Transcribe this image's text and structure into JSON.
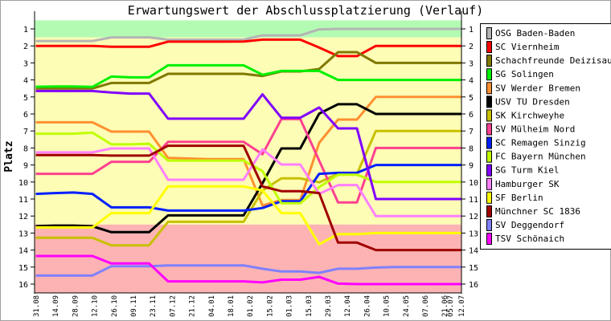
{
  "chart_data": {
    "type": "line",
    "title": "Erwartungswert der Abschlussplatzierung (Verlauf)",
    "ylabel": "Platz",
    "xlabel": "",
    "ylim": [
      16.5,
      0.5
    ],
    "y_ticks": [
      1,
      2,
      3,
      4,
      5,
      6,
      7,
      8,
      9,
      10,
      11,
      12,
      13,
      14,
      15,
      16
    ],
    "x_tick_labels": [
      "31.08",
      "14.09",
      "28.09",
      "12.10",
      "26.10",
      "09.11",
      "23.11",
      "07.12",
      "21.12",
      "04.01",
      "18.01",
      "01.02",
      "15.02",
      "01.03",
      "15.03",
      "29.03",
      "12.04",
      "26.04",
      "10.05",
      "24.05",
      "07.06",
      "21.06",
      "05.07",
      "12.07"
    ],
    "x_rounds": [
      1,
      2,
      3,
      4,
      5,
      6,
      7,
      8,
      9,
      10,
      11,
      12,
      13,
      14,
      15,
      16,
      17,
      18,
      19,
      20,
      21,
      22,
      23
    ],
    "zones": [
      {
        "name": "top",
        "from": 0.5,
        "to": 1.5,
        "color": "#b3fbb3"
      },
      {
        "name": "middle",
        "from": 1.5,
        "to": 12.5,
        "color": "#fdfdb5"
      },
      {
        "name": "relegation",
        "from": 12.5,
        "to": 16.5,
        "color": "#fdb3b3"
      }
    ],
    "legend_position": "right",
    "series": [
      {
        "name": "OSG Baden-Baden",
        "color": "#b4b4b4",
        "values": [
          1.71,
          1.71,
          1.71,
          1.71,
          1.5,
          1.5,
          1.5,
          1.63,
          1.63,
          1.63,
          1.63,
          1.63,
          1.38,
          1.38,
          1.38,
          1.03,
          1,
          1,
          1,
          1,
          1,
          1,
          1
        ]
      },
      {
        "name": "SC Viernheim",
        "color": "#ff0000",
        "values": [
          2,
          2,
          2,
          2,
          2.05,
          2.05,
          2.05,
          1.75,
          1.75,
          1.75,
          1.75,
          1.74,
          1.63,
          1.63,
          1.63,
          2.1,
          2.6,
          2.6,
          2,
          2,
          2,
          2,
          2
        ]
      },
      {
        "name": "Schachfreunde Deizisau",
        "color": "#807800",
        "values": [
          4.5,
          4.5,
          4.5,
          4.5,
          4.18,
          4.18,
          4.18,
          3.64,
          3.64,
          3.64,
          3.64,
          3.64,
          3.77,
          3.5,
          3.5,
          3.36,
          2.37,
          2.37,
          3,
          3,
          3,
          3,
          3
        ]
      },
      {
        "name": "SG Solingen",
        "color": "#00f000",
        "values": [
          4.4,
          4.38,
          4.38,
          4.41,
          3.8,
          3.85,
          3.85,
          3.14,
          3.14,
          3.14,
          3.14,
          3.14,
          3.7,
          3.47,
          3.47,
          3.47,
          4,
          4,
          4,
          4,
          4,
          4,
          4
        ]
      },
      {
        "name": "SV Werder Bremen",
        "color": "#ff9030",
        "values": [
          6.49,
          6.49,
          6.49,
          6.49,
          7.04,
          7.04,
          7.04,
          8.58,
          8.62,
          8.65,
          8.65,
          8.65,
          11.38,
          11.06,
          11.06,
          7.7,
          6.33,
          6.33,
          5,
          5,
          5,
          5,
          5
        ]
      },
      {
        "name": "USV TU Dresden",
        "color": "#000000",
        "values": [
          12.59,
          12.56,
          12.56,
          12.6,
          12.95,
          12.95,
          12.95,
          11.96,
          11.96,
          11.96,
          11.96,
          11.96,
          10.07,
          8.03,
          8.03,
          5.98,
          5.43,
          5.43,
          6,
          6,
          6,
          6,
          6
        ]
      },
      {
        "name": "SK Kirchweyhe",
        "color": "#c8c000",
        "values": [
          13.28,
          13.28,
          13.28,
          13.28,
          13.72,
          13.72,
          13.72,
          12.34,
          12.34,
          12.34,
          12.34,
          12.34,
          10.5,
          9.79,
          9.79,
          10.02,
          9.52,
          9.52,
          7,
          7,
          7,
          7,
          7
        ]
      },
      {
        "name": "SV Mülheim Nord",
        "color": "#ff4090",
        "values": [
          9.52,
          9.52,
          9.52,
          9.52,
          8.81,
          8.81,
          8.81,
          7.64,
          7.64,
          7.64,
          7.64,
          7.64,
          8.37,
          6.3,
          6.3,
          8.74,
          11.2,
          11.2,
          8,
          8,
          8,
          8,
          8
        ]
      },
      {
        "name": "SC Remagen Sinzig",
        "color": "#0020ff",
        "values": [
          10.7,
          10.65,
          10.62,
          10.7,
          11.49,
          11.49,
          11.49,
          11.68,
          11.68,
          11.68,
          11.68,
          11.68,
          11.53,
          11.13,
          11.13,
          9.52,
          9.46,
          9.46,
          9,
          9,
          9,
          9,
          9
        ]
      },
      {
        "name": "FC Bayern München",
        "color": "#c0ff00",
        "values": [
          7.16,
          7.16,
          7.16,
          7.1,
          7.79,
          7.79,
          7.75,
          8.74,
          8.74,
          8.74,
          8.74,
          8.74,
          9.36,
          11.25,
          11.25,
          10.3,
          9.57,
          9.57,
          10,
          10,
          10,
          10,
          10
        ]
      },
      {
        "name": "SG Turm Kiel",
        "color": "#8000ff",
        "values": [
          4.65,
          4.65,
          4.65,
          4.65,
          4.74,
          4.8,
          4.8,
          6.28,
          6.28,
          6.28,
          6.28,
          6.28,
          4.85,
          6.22,
          6.22,
          5.62,
          6.85,
          6.85,
          11,
          11,
          11,
          11,
          11
        ]
      },
      {
        "name": "Hamburger SK",
        "color": "#ff80ff",
        "values": [
          8.26,
          8.26,
          8.26,
          8.26,
          8.03,
          8.03,
          8.03,
          9.87,
          9.87,
          9.87,
          9.87,
          9.87,
          8.08,
          8.97,
          8.97,
          10.7,
          10.18,
          10.18,
          12,
          12,
          12,
          12,
          12
        ]
      },
      {
        "name": "SF Berlin",
        "color": "#ffff00",
        "values": [
          12.67,
          12.67,
          12.67,
          12.67,
          11.83,
          11.83,
          11.83,
          10.26,
          10.26,
          10.26,
          10.26,
          10.26,
          10.5,
          11.83,
          11.83,
          13.66,
          13.06,
          13.06,
          13,
          13,
          13,
          13,
          13
        ]
      },
      {
        "name": "Münchner SC 1836",
        "color": "#a00000",
        "values": [
          8.42,
          8.42,
          8.42,
          8.42,
          8.45,
          8.45,
          8.45,
          7.87,
          7.87,
          7.87,
          7.87,
          7.87,
          10.26,
          10.54,
          10.54,
          10.65,
          13.56,
          13.56,
          14,
          14,
          14,
          14,
          14
        ]
      },
      {
        "name": "SV Deggendorf",
        "color": "#8080ff",
        "values": [
          15.5,
          15.5,
          15.5,
          15.5,
          14.95,
          14.95,
          14.95,
          14.9,
          14.9,
          14.9,
          14.9,
          14.9,
          15.1,
          15.26,
          15.26,
          15.34,
          15.1,
          15.1,
          15.03,
          15,
          15,
          15,
          15
        ]
      },
      {
        "name": "TSV Schönaich",
        "color": "#ff00ff",
        "values": [
          14.35,
          14.35,
          14.35,
          14.35,
          14.79,
          14.79,
          14.79,
          15.84,
          15.84,
          15.84,
          15.84,
          15.84,
          15.9,
          15.74,
          15.74,
          15.58,
          15.97,
          16,
          16,
          16,
          16,
          16,
          16
        ]
      }
    ]
  }
}
